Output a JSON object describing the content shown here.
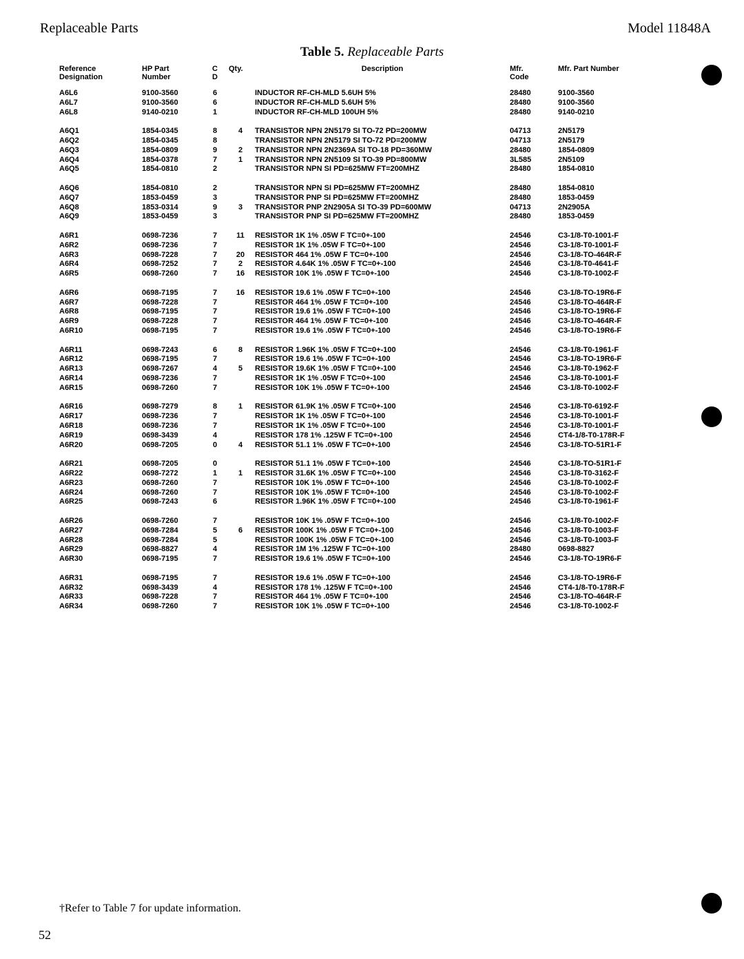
{
  "header": {
    "left": "Replaceable Parts",
    "right": "Model 11848A"
  },
  "tableTitle": {
    "bold": "Table 5.",
    "italic": " Replaceable Parts"
  },
  "columns": {
    "ref": {
      "l1": "Reference",
      "l2": "Designation"
    },
    "part": {
      "l1": "HP Part",
      "l2": "Number"
    },
    "cd": {
      "l1": "C",
      "l2": "D"
    },
    "qty": {
      "l1": "Qty.",
      "l2": ""
    },
    "desc": {
      "l1": "Description",
      "l2": ""
    },
    "mfr": {
      "l1": "Mfr.",
      "l2": "Code"
    },
    "mpn": {
      "l1": "Mfr. Part Number",
      "l2": ""
    }
  },
  "groups": [
    [
      {
        "ref": "A6L6",
        "part": "9100-3560",
        "cd": "6",
        "qty": "",
        "desc": "INDUCTOR RF-CH-MLD 5.6UH 5%",
        "mfr": "28480",
        "mpn": "9100-3560"
      },
      {
        "ref": "A6L7",
        "part": "9100-3560",
        "cd": "6",
        "qty": "",
        "desc": "INDUCTOR RF-CH-MLD 5.6UH 5%",
        "mfr": "28480",
        "mpn": "9100-3560"
      },
      {
        "ref": "A6L8",
        "part": "9140-0210",
        "cd": "1",
        "qty": "",
        "desc": "INDUCTOR RF-CH-MLD 100UH 5%",
        "mfr": "28480",
        "mpn": "9140-0210"
      }
    ],
    [
      {
        "ref": "A6Q1",
        "part": "1854-0345",
        "cd": "8",
        "qty": "4",
        "desc": "TRANSISTOR NPN 2N5179 SI TO-72 PD=200MW",
        "mfr": "04713",
        "mpn": "2N5179"
      },
      {
        "ref": "A6Q2",
        "part": "1854-0345",
        "cd": "8",
        "qty": "",
        "desc": "TRANSISTOR NPN 2N5179 SI TO-72 PD=200MW",
        "mfr": "04713",
        "mpn": "2N5179"
      },
      {
        "ref": "A6Q3",
        "part": "1854-0809",
        "cd": "9",
        "qty": "2",
        "desc": "TRANSISTOR NPN 2N2369A SI TO-18 PD=360MW",
        "mfr": "28480",
        "mpn": "1854-0809"
      },
      {
        "ref": "A6Q4",
        "part": "1854-0378",
        "cd": "7",
        "qty": "1",
        "desc": "TRANSISTOR NPN 2N5109 SI TO-39 PD=800MW",
        "mfr": "3L585",
        "mpn": "2N5109"
      },
      {
        "ref": "A6Q5",
        "part": "1854-0810",
        "cd": "2",
        "qty": "",
        "desc": "TRANSISTOR NPN SI PD=625MW FT=200MHZ",
        "mfr": "28480",
        "mpn": "1854-0810"
      }
    ],
    [
      {
        "ref": "A6Q6",
        "part": "1854-0810",
        "cd": "2",
        "qty": "",
        "desc": "TRANSISTOR NPN SI PD=625MW FT=200MHZ",
        "mfr": "28480",
        "mpn": "1854-0810"
      },
      {
        "ref": "A6Q7",
        "part": "1853-0459",
        "cd": "3",
        "qty": "",
        "desc": "TRANSISTOR PNP SI PD=625MW FT=200MHZ",
        "mfr": "28480",
        "mpn": "1853-0459"
      },
      {
        "ref": "A6Q8",
        "part": "1853-0314",
        "cd": "9",
        "qty": "3",
        "desc": "TRANSISTOR PNP 2N2905A SI TO-39 PD=600MW",
        "mfr": "04713",
        "mpn": "2N2905A"
      },
      {
        "ref": "A6Q9",
        "part": "1853-0459",
        "cd": "3",
        "qty": "",
        "desc": "TRANSISTOR PNP SI PD=625MW FT=200MHZ",
        "mfr": "28480",
        "mpn": "1853-0459"
      }
    ],
    [
      {
        "ref": "A6R1",
        "part": "0698-7236",
        "cd": "7",
        "qty": "11",
        "desc": "RESISTOR 1K 1% .05W F TC=0+-100",
        "mfr": "24546",
        "mpn": "C3-1/8-T0-1001-F"
      },
      {
        "ref": "A6R2",
        "part": "0698-7236",
        "cd": "7",
        "qty": "",
        "desc": "RESISTOR 1K 1% .05W F TC=0+-100",
        "mfr": "24546",
        "mpn": "C3-1/8-T0-1001-F"
      },
      {
        "ref": "A6R3",
        "part": "0698-7228",
        "cd": "7",
        "qty": "20",
        "desc": "RESISTOR 464 1% .05W F TC=0+-100",
        "mfr": "24546",
        "mpn": "C3-1/8-TO-464R-F"
      },
      {
        "ref": "A6R4",
        "part": "0698-7252",
        "cd": "7",
        "qty": "2",
        "desc": "RESISTOR 4.64K 1% .05W F TC=0+-100",
        "mfr": "24546",
        "mpn": "C3-1/8-T0-4641-F"
      },
      {
        "ref": "A6R5",
        "part": "0698-7260",
        "cd": "7",
        "qty": "16",
        "desc": "RESISTOR 10K 1% .05W F TC=0+-100",
        "mfr": "24546",
        "mpn": "C3-1/8-T0-1002-F"
      }
    ],
    [
      {
        "ref": "A6R6",
        "part": "0698-7195",
        "cd": "7",
        "qty": "16",
        "desc": "RESISTOR 19.6 1% .05W F TC=0+-100",
        "mfr": "24546",
        "mpn": "C3-1/8-TO-19R6-F"
      },
      {
        "ref": "A6R7",
        "part": "0698-7228",
        "cd": "7",
        "qty": "",
        "desc": "RESISTOR 464 1% .05W F TC=0+-100",
        "mfr": "24546",
        "mpn": "C3-1/8-TO-464R-F"
      },
      {
        "ref": "A6R8",
        "part": "0698-7195",
        "cd": "7",
        "qty": "",
        "desc": "RESISTOR 19.6 1% .05W F TC=0+-100",
        "mfr": "24546",
        "mpn": "C3-1/8-TO-19R6-F"
      },
      {
        "ref": "A6R9",
        "part": "0698-7228",
        "cd": "7",
        "qty": "",
        "desc": "RESISTOR 464 1% .05W F TC=0+-100",
        "mfr": "24546",
        "mpn": "C3-1/8-TO-464R-F"
      },
      {
        "ref": "A6R10",
        "part": "0698-7195",
        "cd": "7",
        "qty": "",
        "desc": "RESISTOR 19.6 1% .05W F TC=0+-100",
        "mfr": "24546",
        "mpn": "C3-1/8-TO-19R6-F"
      }
    ],
    [
      {
        "ref": "A6R11",
        "part": "0698-7243",
        "cd": "6",
        "qty": "8",
        "desc": "RESISTOR 1.96K 1% .05W F TC=0+-100",
        "mfr": "24546",
        "mpn": "C3-1/8-T0-1961-F"
      },
      {
        "ref": "A6R12",
        "part": "0698-7195",
        "cd": "7",
        "qty": "",
        "desc": "RESISTOR 19.6 1% .05W F TC=0+-100",
        "mfr": "24546",
        "mpn": "C3-1/8-TO-19R6-F"
      },
      {
        "ref": "A6R13",
        "part": "0698-7267",
        "cd": "4",
        "qty": "5",
        "desc": "RESISTOR 19.6K 1% .05W F TC=0+-100",
        "mfr": "24546",
        "mpn": "C3-1/8-T0-1962-F"
      },
      {
        "ref": "A6R14",
        "part": "0698-7236",
        "cd": "7",
        "qty": "",
        "desc": "RESISTOR 1K 1% .05W F TC=0+-100",
        "mfr": "24546",
        "mpn": "C3-1/8-T0-1001-F"
      },
      {
        "ref": "A6R15",
        "part": "0698-7260",
        "cd": "7",
        "qty": "",
        "desc": "RESISTOR 10K 1% .05W F TC=0+-100",
        "mfr": "24546",
        "mpn": "C3-1/8-T0-1002-F"
      }
    ],
    [
      {
        "ref": "A6R16",
        "part": "0698-7279",
        "cd": "8",
        "qty": "1",
        "desc": "RESISTOR 61.9K 1% .05W F TC=0+-100",
        "mfr": "24546",
        "mpn": "C3-1/8-T0-6192-F"
      },
      {
        "ref": "A6R17",
        "part": "0698-7236",
        "cd": "7",
        "qty": "",
        "desc": "RESISTOR 1K 1% .05W F TC=0+-100",
        "mfr": "24546",
        "mpn": "C3-1/8-T0-1001-F"
      },
      {
        "ref": "A6R18",
        "part": "0698-7236",
        "cd": "7",
        "qty": "",
        "desc": "RESISTOR 1K 1% .05W F TC=0+-100",
        "mfr": "24546",
        "mpn": "C3-1/8-T0-1001-F"
      },
      {
        "ref": "A6R19",
        "part": "0698-3439",
        "cd": "4",
        "qty": "",
        "desc": "RESISTOR 178 1% .125W F TC=0+-100",
        "mfr": "24546",
        "mpn": "CT4-1/8-T0-178R-F"
      },
      {
        "ref": "A6R20",
        "part": "0698-7205",
        "cd": "0",
        "qty": "4",
        "desc": "RESISTOR 51.1 1% .05W F TC=0+-100",
        "mfr": "24546",
        "mpn": "C3-1/8-TO-51R1-F"
      }
    ],
    [
      {
        "ref": "A6R21",
        "part": "0698-7205",
        "cd": "0",
        "qty": "",
        "desc": "RESISTOR 51.1 1% .05W F TC=0+-100",
        "mfr": "24546",
        "mpn": "C3-1/8-TO-51R1-F"
      },
      {
        "ref": "A6R22",
        "part": "0698-7272",
        "cd": "1",
        "qty": "1",
        "desc": "RESISTOR 31.6K 1% .05W F TC=0+-100",
        "mfr": "24546",
        "mpn": "C3-1/8-T0-3162-F"
      },
      {
        "ref": "A6R23",
        "part": "0698-7260",
        "cd": "7",
        "qty": "",
        "desc": "RESISTOR 10K 1% .05W F TC=0+-100",
        "mfr": "24546",
        "mpn": "C3-1/8-T0-1002-F"
      },
      {
        "ref": "A6R24",
        "part": "0698-7260",
        "cd": "7",
        "qty": "",
        "desc": "RESISTOR 10K 1% .05W F TC=0+-100",
        "mfr": "24546",
        "mpn": "C3-1/8-T0-1002-F"
      },
      {
        "ref": "A6R25",
        "part": "0698-7243",
        "cd": "6",
        "qty": "",
        "desc": "RESISTOR 1.96K 1% .05W F TC=0+-100",
        "mfr": "24546",
        "mpn": "C3-1/8-T0-1961-F"
      }
    ],
    [
      {
        "ref": "A6R26",
        "part": "0698-7260",
        "cd": "7",
        "qty": "",
        "desc": "RESISTOR 10K 1% .05W F TC=0+-100",
        "mfr": "24546",
        "mpn": "C3-1/8-T0-1002-F"
      },
      {
        "ref": "A6R27",
        "part": "0698-7284",
        "cd": "5",
        "qty": "6",
        "desc": "RESISTOR 100K 1% .05W F TC=0+-100",
        "mfr": "24546",
        "mpn": "C3-1/8-T0-1003-F"
      },
      {
        "ref": "A6R28",
        "part": "0698-7284",
        "cd": "5",
        "qty": "",
        "desc": "RESISTOR 100K 1% .05W F TC=0+-100",
        "mfr": "24546",
        "mpn": "C3-1/8-T0-1003-F"
      },
      {
        "ref": "A6R29",
        "part": "0698-8827",
        "cd": "4",
        "qty": "",
        "desc": "RESISTOR 1M 1% .125W F TC=0+-100",
        "mfr": "28480",
        "mpn": "0698-8827"
      },
      {
        "ref": "A6R30",
        "part": "0698-7195",
        "cd": "7",
        "qty": "",
        "desc": "RESISTOR 19.6 1% .05W F TC=0+-100",
        "mfr": "24546",
        "mpn": "C3-1/8-TO-19R6-F"
      }
    ],
    [
      {
        "ref": "A6R31",
        "part": "0698-7195",
        "cd": "7",
        "qty": "",
        "desc": "RESISTOR 19.6 1% .05W F TC=0+-100",
        "mfr": "24546",
        "mpn": "C3-1/8-TO-19R6-F"
      },
      {
        "ref": "A6R32",
        "part": "0698-3439",
        "cd": "4",
        "qty": "",
        "desc": "RESISTOR 178 1% .125W F TC=0+-100",
        "mfr": "24546",
        "mpn": "CT4-1/8-T0-178R-F"
      },
      {
        "ref": "A6R33",
        "part": "0698-7228",
        "cd": "7",
        "qty": "",
        "desc": "RESISTOR 464 1% .05W F TC=0+-100",
        "mfr": "24546",
        "mpn": "C3-1/8-TO-464R-F"
      },
      {
        "ref": "A6R34",
        "part": "0698-7260",
        "cd": "7",
        "qty": "",
        "desc": "RESISTOR 10K 1% .05W F TC=0+-100",
        "mfr": "24546",
        "mpn": "C3-1/8-T0-1002-F"
      }
    ]
  ],
  "footerNote": "†Refer to Table 7 for update information.",
  "pageNum": "52"
}
